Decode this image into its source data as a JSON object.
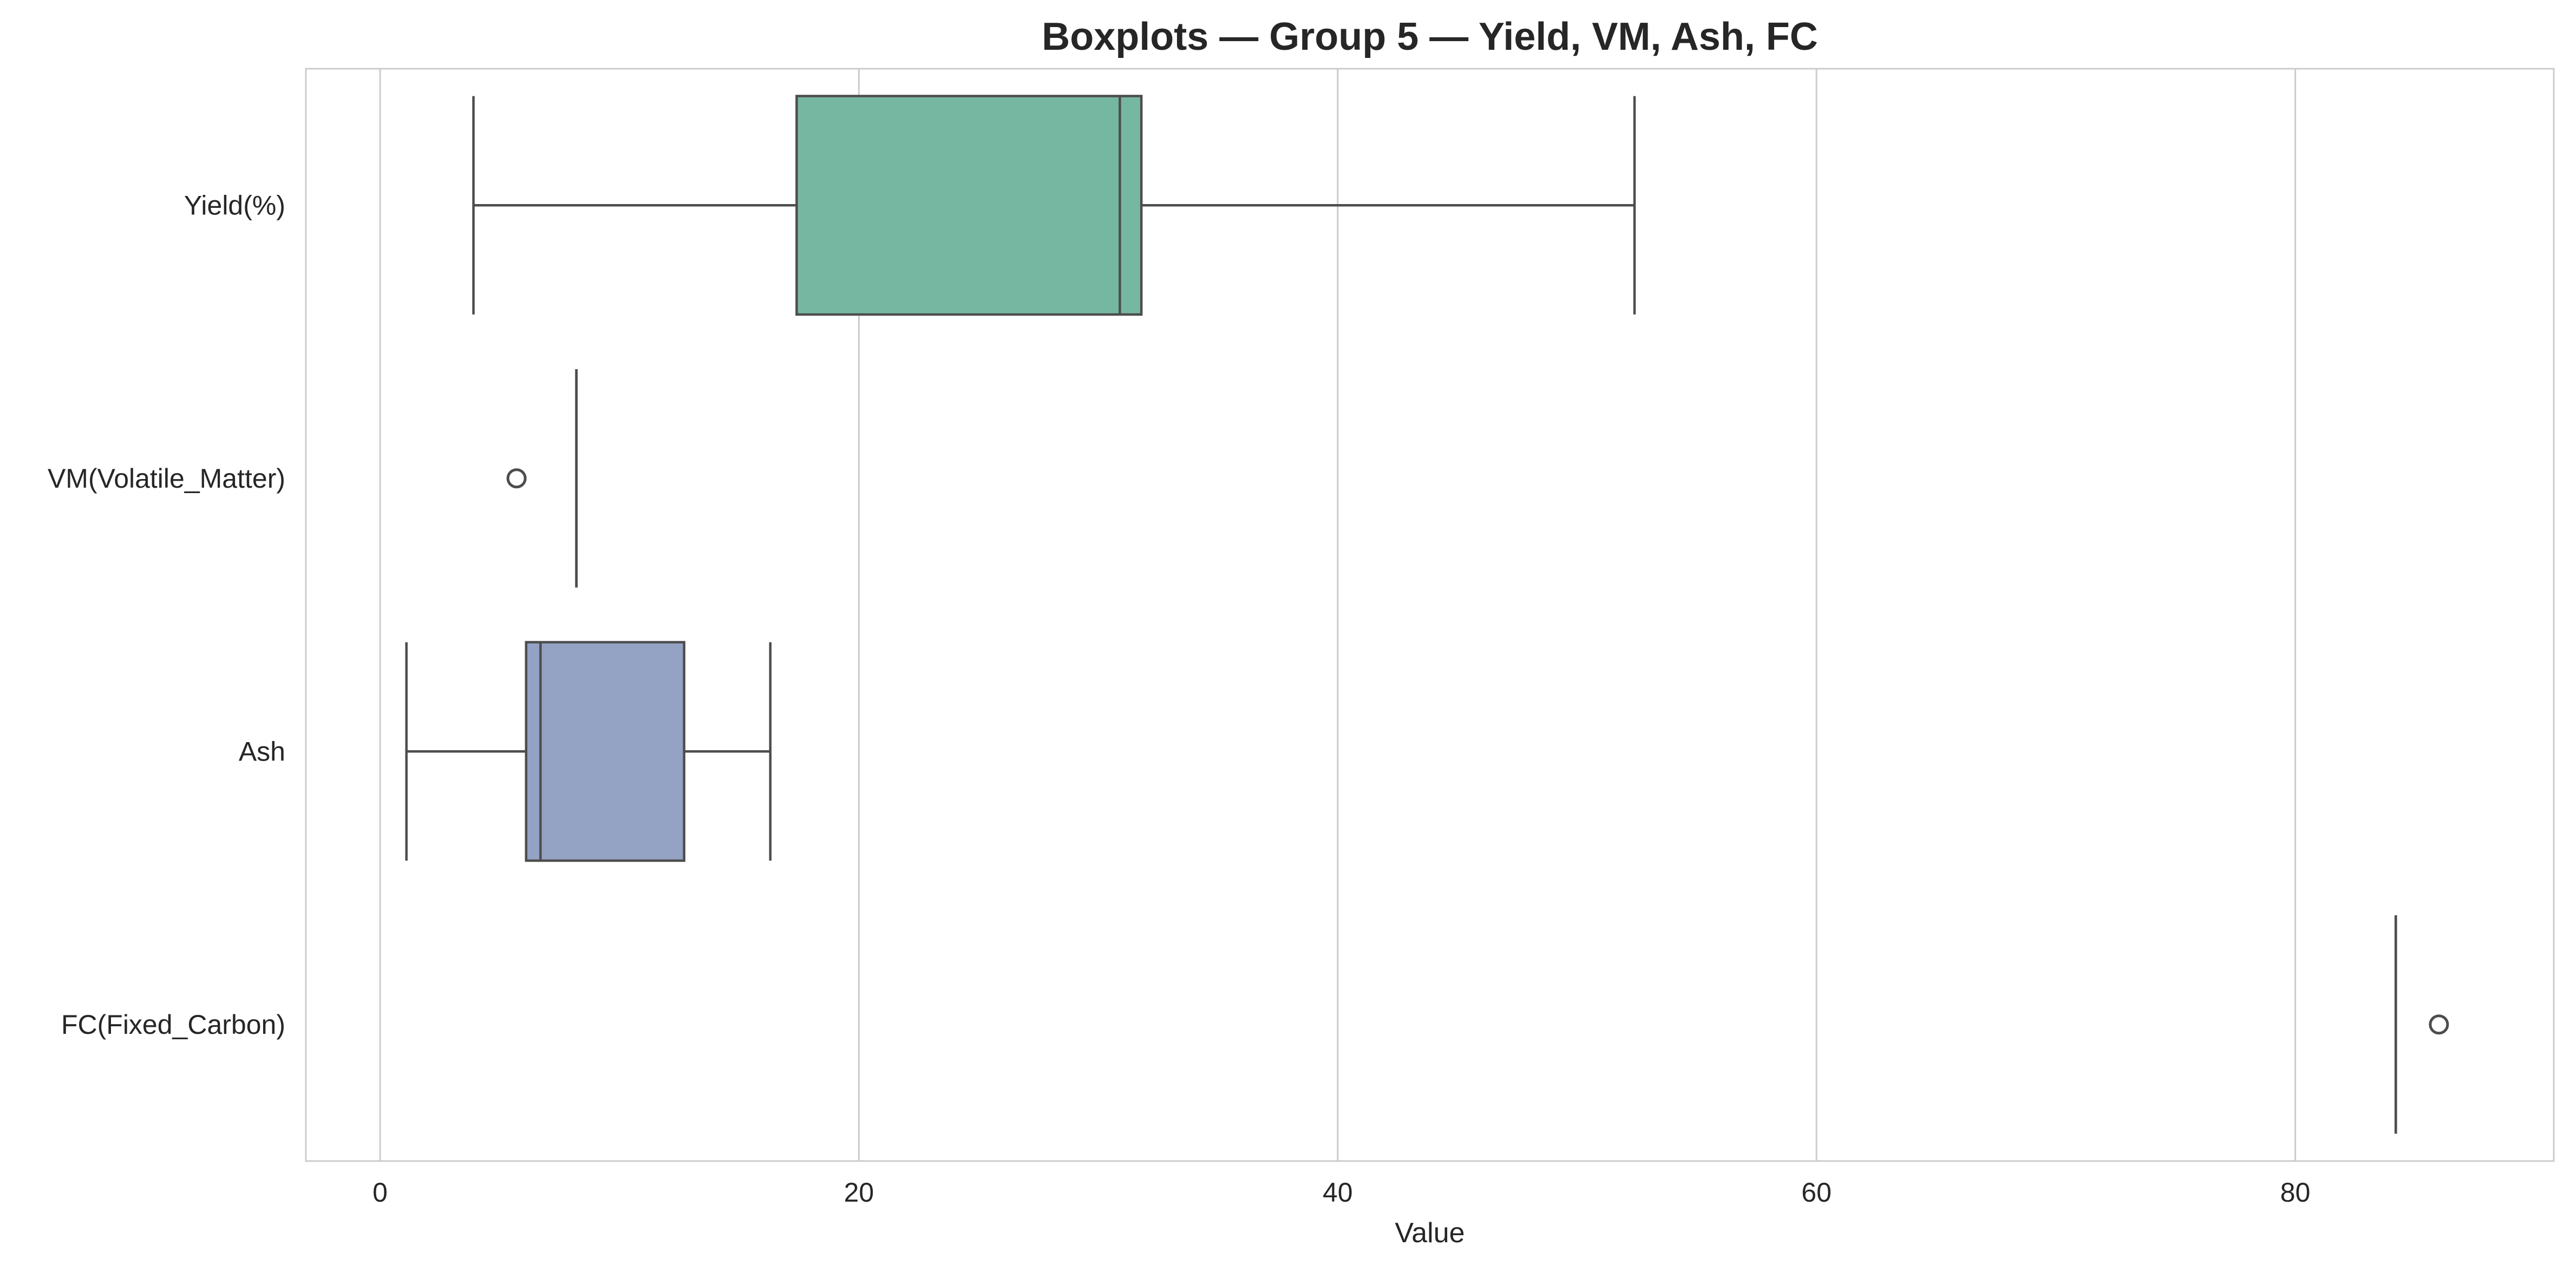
{
  "chart_data": {
    "type": "boxplot",
    "orientation": "horizontal",
    "title": "Boxplots — Group 5 — Yield, VM, Ash, FC",
    "xlabel": "Value",
    "ylabel": "",
    "xlim": [
      -3.1,
      90.8
    ],
    "xticks": [
      0,
      20,
      40,
      60,
      80
    ],
    "grid": {
      "x": true,
      "y": false
    },
    "colors": {
      "grid": "#cccccc",
      "spine": "#cccccc",
      "line": "#4d4d4d",
      "text": "#262626"
    },
    "categories": [
      "Yield(%)",
      "VM(Volatile_Matter)",
      "Ash",
      "FC(Fixed_Carbon)"
    ],
    "boxes": [
      {
        "label": "Yield(%)",
        "whisker_low": 3.9,
        "q1": 17.4,
        "median": 30.9,
        "q3": 31.8,
        "whisker_high": 52.4,
        "outliers": [],
        "color": "#76b7a2"
      },
      {
        "label": "VM(Volatile_Matter)",
        "whisker_low": 8.2,
        "q1": 8.2,
        "median": 8.2,
        "q3": 8.2,
        "whisker_high": 8.2,
        "outliers": [
          5.7
        ],
        "color": "#fc8d62"
      },
      {
        "label": "Ash",
        "whisker_low": 1.1,
        "q1": 6.1,
        "median": 6.7,
        "q3": 12.7,
        "whisker_high": 16.3,
        "outliers": [],
        "color": "#94a3c4"
      },
      {
        "label": "FC(Fixed_Carbon)",
        "whisker_low": 84.2,
        "q1": 84.2,
        "median": 84.2,
        "q3": 84.2,
        "whisker_high": 84.2,
        "outliers": [
          86.0
        ],
        "color": "#e78ac3"
      }
    ]
  }
}
